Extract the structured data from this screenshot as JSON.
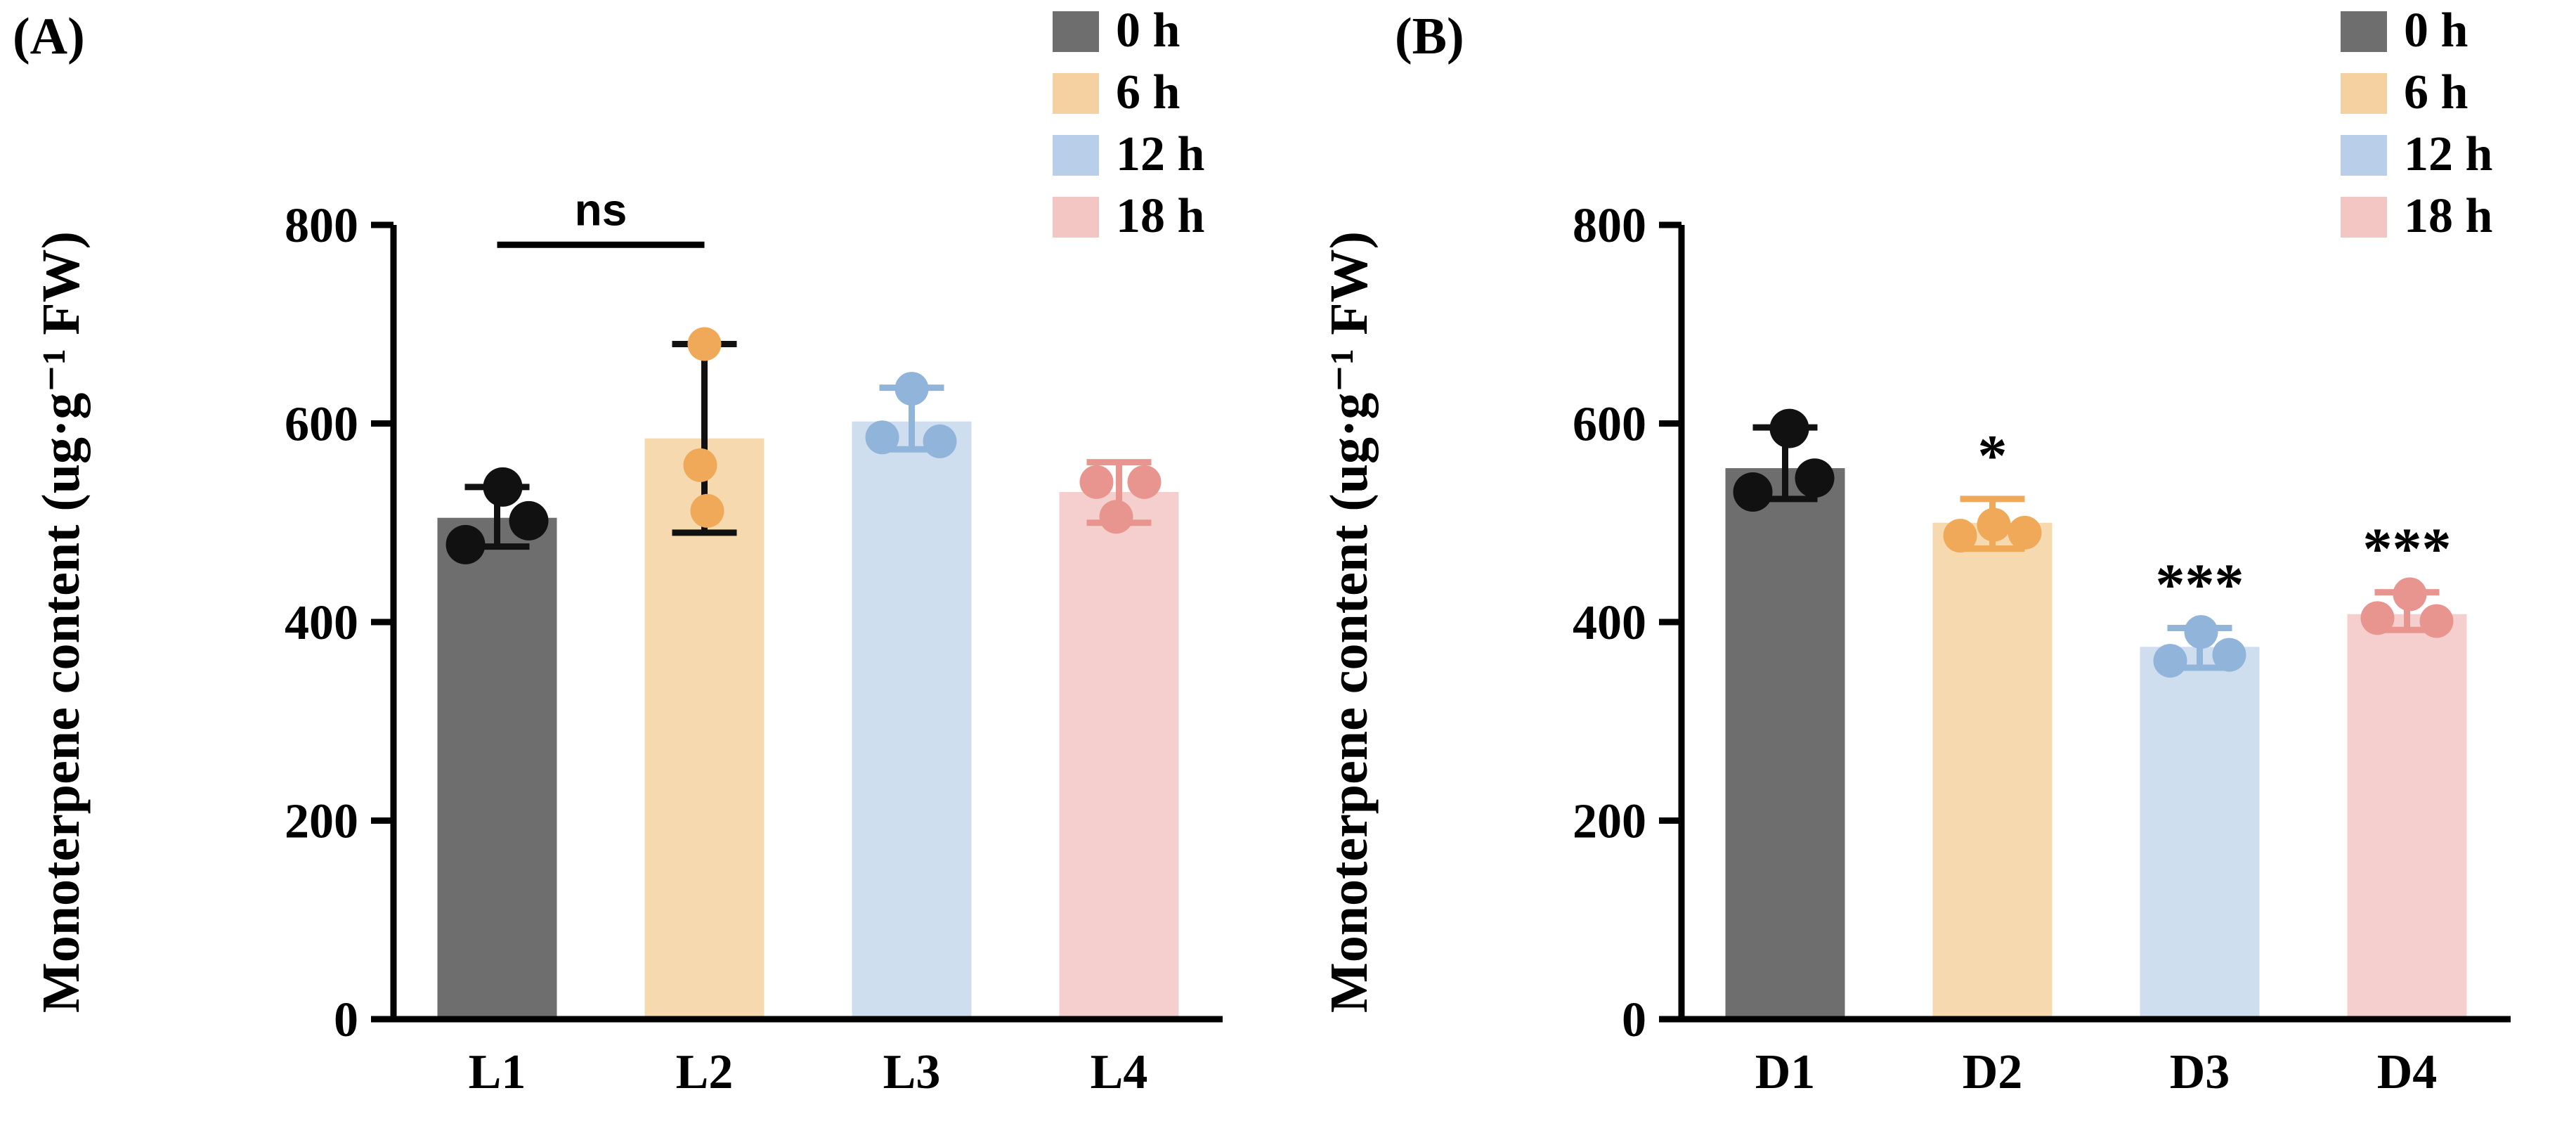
{
  "figure": {
    "background": "#ffffff",
    "axis_color": "#000000",
    "text_color": "#000000"
  },
  "style": {
    "bar_fills": [
      "#6e6e6e",
      "#f6d9ae",
      "#cfdeee",
      "#f5cfcd"
    ],
    "point_colors": [
      "#111111",
      "#efa959",
      "#90b4da",
      "#e9958f"
    ],
    "ns_font_color": "#000000"
  },
  "chart_data": [
    {
      "type": "bar",
      "panel_label": "(A)",
      "ylabel": "Monoterpene content (ug·g⁻¹ FW)",
      "xlabel": "",
      "ylim": [
        0,
        800
      ],
      "yticks": [
        0,
        200,
        400,
        600,
        800
      ],
      "grid": false,
      "legend_position": "top-right",
      "categories": [
        "L1",
        "L2",
        "L3",
        "L4"
      ],
      "legend": [
        {
          "label": "0 h",
          "color": "#6e6e6e"
        },
        {
          "label": "6 h",
          "color": "#f5d0a0"
        },
        {
          "label": "12 h",
          "color": "#b9cfe9"
        },
        {
          "label": "18 h",
          "color": "#f3c6c4"
        }
      ],
      "bars": [
        {
          "category": "L1",
          "value": 505,
          "err": [
            476,
            536
          ],
          "err_color": "#111111",
          "points": [
            {
              "dx": -45,
              "v": 478
            },
            {
              "dx": 8,
              "v": 536
            },
            {
              "dx": 45,
              "v": 502
            }
          ],
          "sig": ""
        },
        {
          "category": "L2",
          "value": 585,
          "err": [
            490,
            680
          ],
          "err_color": "#111111",
          "points": [
            {
              "dx": 0,
              "v": 680
            },
            {
              "dx": -6,
              "v": 558
            },
            {
              "dx": 4,
              "v": 512
            }
          ],
          "sig": ""
        },
        {
          "category": "L3",
          "value": 602,
          "err": [
            574,
            636
          ],
          "err_color": "#90b4da",
          "points": [
            {
              "dx": 0,
              "v": 635
            },
            {
              "dx": -42,
              "v": 586
            },
            {
              "dx": 40,
              "v": 582
            }
          ],
          "sig": ""
        },
        {
          "category": "L4",
          "value": 531,
          "err": [
            500,
            561
          ],
          "err_color": "#e9958f",
          "points": [
            {
              "dx": -32,
              "v": 541
            },
            {
              "dx": 36,
              "v": 541
            },
            {
              "dx": -4,
              "v": 506
            }
          ],
          "sig": ""
        }
      ],
      "annotation": {
        "type": "ns-bracket",
        "label": "ns",
        "from_bar": 0,
        "to_bar": 1,
        "line_value": 780
      }
    },
    {
      "type": "bar",
      "panel_label": "(B)",
      "ylabel": "Monoterpene content (ug·g⁻¹ FW)",
      "xlabel": "",
      "ylim": [
        0,
        800
      ],
      "yticks": [
        0,
        200,
        400,
        600,
        800
      ],
      "grid": false,
      "legend_position": "top-right",
      "categories": [
        "D1",
        "D2",
        "D3",
        "D4"
      ],
      "legend": [
        {
          "label": "0 h",
          "color": "#6e6e6e"
        },
        {
          "label": "6 h",
          "color": "#f5d0a0"
        },
        {
          "label": "12 h",
          "color": "#b9cfe9"
        },
        {
          "label": "18 h",
          "color": "#f3c6c4"
        }
      ],
      "bars": [
        {
          "category": "D1",
          "value": 555,
          "err": [
            524,
            596
          ],
          "err_color": "#111111",
          "points": [
            {
              "dx": 6,
              "v": 595
            },
            {
              "dx": -46,
              "v": 531
            },
            {
              "dx": 42,
              "v": 545
            }
          ],
          "sig": ""
        },
        {
          "category": "D2",
          "value": 500,
          "err": [
            474,
            524
          ],
          "err_color": "#efa959",
          "points": [
            {
              "dx": -46,
              "v": 487
            },
            {
              "dx": 2,
              "v": 498
            },
            {
              "dx": 46,
              "v": 490
            }
          ],
          "sig": "*"
        },
        {
          "category": "D3",
          "value": 375,
          "err": [
            354,
            394
          ],
          "err_color": "#90b4da",
          "points": [
            {
              "dx": 2,
              "v": 390
            },
            {
              "dx": -42,
              "v": 361
            },
            {
              "dx": 42,
              "v": 367
            }
          ],
          "sig": "***"
        },
        {
          "category": "D4",
          "value": 408,
          "err": [
            392,
            430
          ],
          "err_color": "#e9958f",
          "points": [
            {
              "dx": -42,
              "v": 404
            },
            {
              "dx": 42,
              "v": 401
            },
            {
              "dx": 4,
              "v": 428
            }
          ],
          "sig": "***"
        }
      ],
      "annotation": null
    }
  ]
}
